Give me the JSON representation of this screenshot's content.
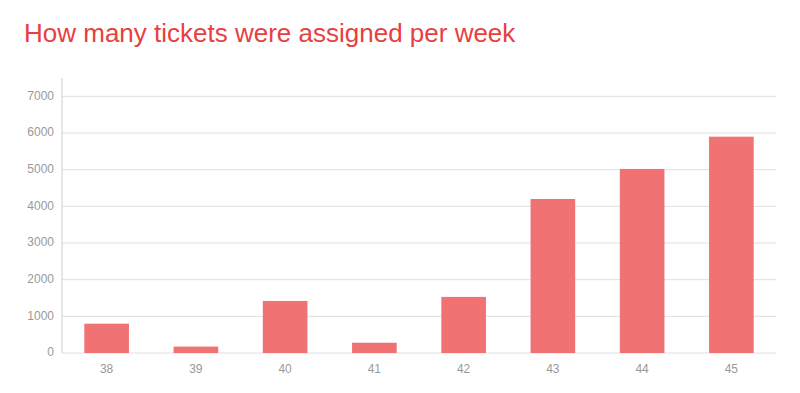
{
  "chart_data": {
    "type": "bar",
    "title": "How many tickets were assigned per week",
    "categories": [
      "38",
      "39",
      "40",
      "41",
      "42",
      "43",
      "44",
      "45"
    ],
    "values": [
      800,
      175,
      1420,
      280,
      1530,
      4200,
      5020,
      5900
    ],
    "color": "#f07272",
    "ylim": [
      0,
      7500
    ],
    "yticks": [
      0,
      1000,
      2000,
      3000,
      4000,
      5000,
      6000,
      7000
    ],
    "grid": true
  }
}
